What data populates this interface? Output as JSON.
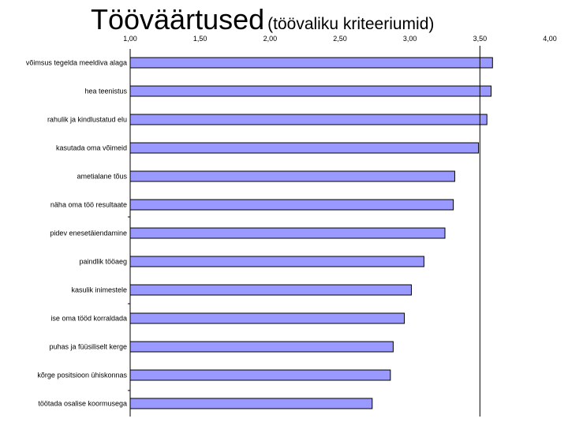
{
  "title": {
    "main": "Tööväärtused",
    "sub": "(töövaliku kriteeriumid)"
  },
  "colors": {
    "bar_fill": "#9999ff",
    "bar_stroke": "#000000",
    "axis": "#000000",
    "reference_line": "#000000",
    "background": "#ffffff"
  },
  "chart_data": {
    "type": "bar",
    "orientation": "horizontal",
    "categories": [
      "võimsus tegelda meeldiva alaga",
      "hea teenistus",
      "rahulik ja kindlustatud elu",
      "kasutada oma võimeid",
      "ametialane tõus",
      "näha oma töö resultaate",
      "pidev enesetäiendamine",
      "paindlik tööaeg",
      "kasulik inimestele",
      "ise oma tööd korraldada",
      "puhas ja füüsiliselt kerge",
      "kõrge positsioon ühiskonnas",
      "töötada osalise koormusega"
    ],
    "values": [
      3.59,
      3.58,
      3.55,
      3.49,
      3.32,
      3.31,
      3.25,
      3.1,
      3.01,
      2.96,
      2.88,
      2.86,
      2.73
    ],
    "xlim": [
      1.0,
      4.0
    ],
    "x_ticks": [
      "1,00",
      "1,50",
      "2,00",
      "2,50",
      "3,00",
      "3,50",
      "4,00"
    ],
    "x_tick_values": [
      1.0,
      1.5,
      2.0,
      2.5,
      3.0,
      3.5,
      4.0
    ],
    "reference_line_x": 3.5,
    "xaxis_position": "top",
    "grid": false,
    "legend": "none"
  }
}
